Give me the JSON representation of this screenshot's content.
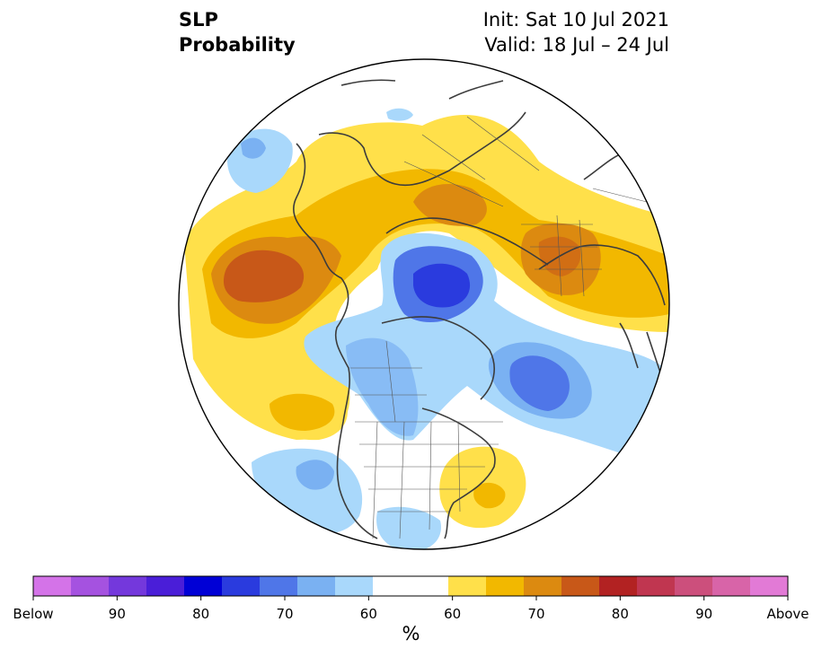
{
  "title": {
    "line1": "SLP",
    "line2": "Probability"
  },
  "info": {
    "init": "Init: Sat 10 Jul 2021",
    "valid": "Valid: 18 Jul – 24 Jul"
  },
  "colorbar": {
    "colors": [
      "#d473e8",
      "#a552e0",
      "#7438dc",
      "#4a1ed8",
      "#0000d6",
      "#2a3bde",
      "#4f76e8",
      "#7ab1f2",
      "#a9d8fb",
      "#ffffff",
      "#ffffff",
      "#ffe04a",
      "#f2b800",
      "#dc8a10",
      "#c85818",
      "#b22222",
      "#c03650",
      "#cc4f7c",
      "#d864a8",
      "#e27ad6"
    ],
    "tick_labels": [
      "Below",
      "90",
      "80",
      "70",
      "60",
      "60",
      "70",
      "80",
      "90",
      "Above"
    ],
    "unit": "%"
  },
  "legend_colors": {
    "above": "#f2b800",
    "below": "#2a3bde"
  }
}
